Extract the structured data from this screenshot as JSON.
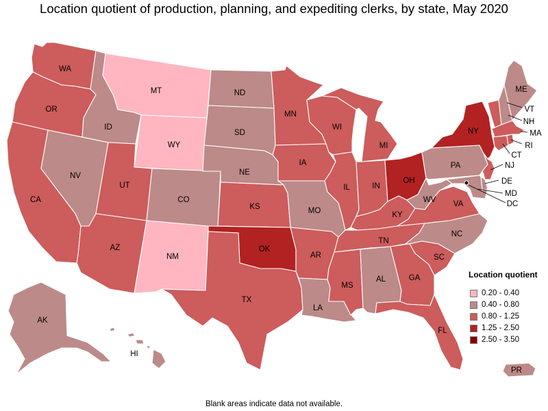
{
  "title": "Location quotient of production, planning, and expediting clerks, by state, May 2020",
  "footnote": "Blank areas indicate data not available.",
  "legend": {
    "title": "Location quotient",
    "bins": [
      {
        "label": "0.20 - 0.40",
        "color": "#ffb6c1"
      },
      {
        "label": "0.40 - 0.80",
        "color": "#bc8a88"
      },
      {
        "label": "0.80 - 1.25",
        "color": "#cd5c5c"
      },
      {
        "label": "1.25 - 2.50",
        "color": "#b22222"
      },
      {
        "label": "2.50 - 3.50",
        "color": "#8b0000"
      }
    ]
  },
  "states": {
    "WA": {
      "label": "WA",
      "bin": 2
    },
    "OR": {
      "label": "OR",
      "bin": 2
    },
    "CA": {
      "label": "CA",
      "bin": 2
    },
    "NV": {
      "label": "NV",
      "bin": 1
    },
    "ID": {
      "label": "ID",
      "bin": 1
    },
    "MT": {
      "label": "MT",
      "bin": 0
    },
    "WY": {
      "label": "WY",
      "bin": 0
    },
    "UT": {
      "label": "UT",
      "bin": 2
    },
    "AZ": {
      "label": "AZ",
      "bin": 2
    },
    "CO": {
      "label": "CO",
      "bin": 1
    },
    "NM": {
      "label": "NM",
      "bin": 0
    },
    "ND": {
      "label": "ND",
      "bin": 1
    },
    "SD": {
      "label": "SD",
      "bin": 1
    },
    "NE": {
      "label": "NE",
      "bin": 1
    },
    "KS": {
      "label": "KS",
      "bin": 2
    },
    "OK": {
      "label": "OK",
      "bin": 3
    },
    "TX": {
      "label": "TX",
      "bin": 2
    },
    "MN": {
      "label": "MN",
      "bin": 2
    },
    "IA": {
      "label": "IA",
      "bin": 2
    },
    "MO": {
      "label": "MO",
      "bin": 1
    },
    "AR": {
      "label": "AR",
      "bin": 2
    },
    "LA": {
      "label": "LA",
      "bin": 1
    },
    "WI": {
      "label": "WI",
      "bin": 2
    },
    "IL": {
      "label": "IL",
      "bin": 2
    },
    "MI": {
      "label": "MI",
      "bin": 2
    },
    "IN": {
      "label": "IN",
      "bin": 2
    },
    "OH": {
      "label": "OH",
      "bin": 3
    },
    "KY": {
      "label": "KY",
      "bin": 2
    },
    "TN": {
      "label": "TN",
      "bin": 2
    },
    "MS": {
      "label": "MS",
      "bin": 2
    },
    "AL": {
      "label": "AL",
      "bin": 1
    },
    "GA": {
      "label": "GA",
      "bin": 2
    },
    "FL": {
      "label": "FL",
      "bin": 2
    },
    "SC": {
      "label": "SC",
      "bin": 2
    },
    "NC": {
      "label": "NC",
      "bin": 1
    },
    "VA": {
      "label": "VA",
      "bin": 2
    },
    "WV": {
      "label": "WV",
      "bin": 1
    },
    "PA": {
      "label": "PA",
      "bin": 1
    },
    "NY": {
      "label": "NY",
      "bin": 3
    },
    "VT": {
      "label": "VT",
      "bin": 2
    },
    "NH": {
      "label": "NH",
      "bin": 1
    },
    "ME": {
      "label": "ME",
      "bin": 1
    },
    "MA": {
      "label": "MA",
      "bin": 2
    },
    "RI": {
      "label": "RI",
      "bin": 2
    },
    "CT": {
      "label": "CT",
      "bin": 2
    },
    "NJ": {
      "label": "NJ",
      "bin": 2
    },
    "DE": {
      "label": "DE",
      "bin": 1
    },
    "MD": {
      "label": "MD",
      "bin": 1
    },
    "DC": {
      "label": "DC",
      "bin": 1
    },
    "AK": {
      "label": "AK",
      "bin": 1
    },
    "HI": {
      "label": "HI",
      "bin": 1
    },
    "PR": {
      "label": "PR",
      "bin": 1
    }
  }
}
